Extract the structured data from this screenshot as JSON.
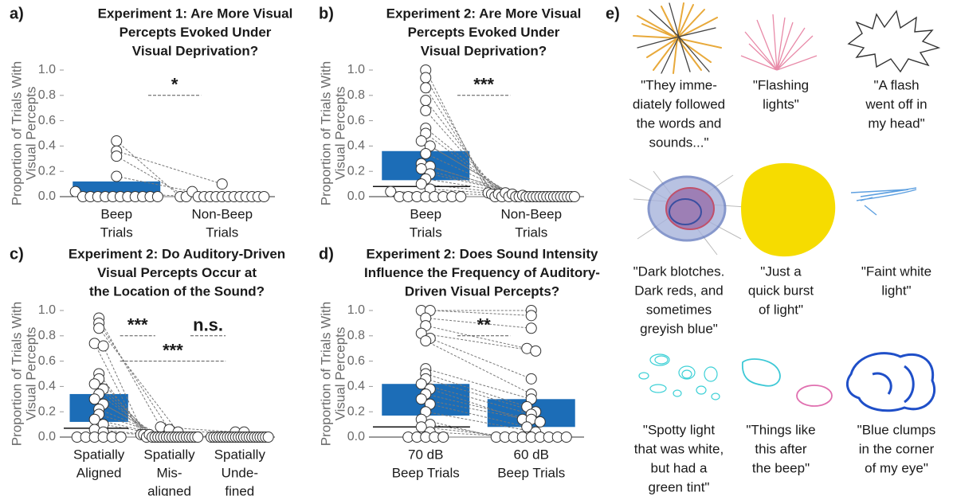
{
  "chart_data": [
    {
      "type": "paired-dots",
      "panel": "a)",
      "title": [
        "Experiment 1: Are More Visual",
        "Percepts Evoked Under",
        "Visual Deprivation?"
      ],
      "ylabel": [
        "Proportion of Trials With",
        "Visual Percepts"
      ],
      "categories": [
        [
          "Beep",
          "Trials"
        ],
        [
          "Non-Beep",
          "Trials"
        ]
      ],
      "ylim": [
        0,
        1
      ],
      "yticks": [
        {
          "value": 0,
          "label": "0.0"
        },
        0.2,
        0.4,
        0.6,
        0.8,
        {
          "value": 1,
          "label": "1.0"
        }
      ],
      "color": "#1c6db7",
      "box": [
        [
          0,
          0.12
        ],
        null
      ],
      "median": [
        null,
        null
      ],
      "points": [
        [
          0.44,
          0.36,
          0.32,
          0.16,
          0.04,
          0,
          0,
          0,
          0,
          0,
          0,
          0,
          0,
          0,
          0,
          0
        ],
        [
          0,
          0.1,
          0,
          0.04,
          0,
          0,
          0,
          0,
          0,
          0,
          0,
          0,
          0,
          0,
          0,
          0
        ]
      ],
      "annotations": [
        {
          "label": "*",
          "y": 0.8,
          "pair": [
            0,
            1
          ]
        }
      ]
    },
    {
      "type": "paired-dots",
      "panel": "b)",
      "title": [
        "Experiment 2: Are More Visual",
        "Percepts Evoked Under",
        "Visual Deprivation?"
      ],
      "ylabel": [
        "Proportion of Trials With",
        "Visual Percepts"
      ],
      "categories": [
        [
          "Beep",
          "Trials"
        ],
        [
          "Non-Beep",
          "Trials"
        ]
      ],
      "ylim": [
        0,
        1
      ],
      "yticks": [
        {
          "value": 0,
          "label": "0.0"
        },
        0.2,
        0.4,
        0.6,
        0.8,
        {
          "value": 1,
          "label": "1.0"
        }
      ],
      "color": "#1c6db7",
      "box": [
        [
          0.13,
          0.36
        ],
        null
      ],
      "median": [
        0.08,
        null
      ],
      "points": [
        [
          1,
          0.94,
          0.86,
          0.76,
          0.68,
          0.54,
          0.5,
          0.44,
          0.4,
          0.34,
          0.26,
          0.24,
          0.22,
          0.18,
          0.14,
          0.1,
          0.06,
          0.04,
          0,
          0,
          0,
          0,
          0,
          0,
          0,
          0
        ],
        [
          0.03,
          0.02,
          0,
          0.02,
          0,
          0.03,
          0,
          0.02,
          0,
          0,
          0.01,
          0,
          0,
          0,
          0,
          0,
          0,
          0,
          0,
          0,
          0,
          0,
          0,
          0,
          0,
          0
        ]
      ],
      "annotations": [
        {
          "label": "***",
          "y": 0.8,
          "pair": [
            0,
            1
          ]
        }
      ]
    },
    {
      "type": "paired-dots",
      "panel": "c)",
      "title": [
        "Experiment 2: Do Auditory-Driven",
        "Visual Percepts Occur at",
        "the Location of the Sound?"
      ],
      "ylabel": [
        "Proportion of Trials With",
        "Visual Percepts"
      ],
      "categories": [
        [
          "Spatially",
          "Aligned"
        ],
        [
          "Spatially",
          "Mis-",
          "aligned"
        ],
        [
          "Spatially",
          "Unde-",
          "fined"
        ]
      ],
      "ylim": [
        0,
        1
      ],
      "yticks": [
        {
          "value": 0,
          "label": "0.0"
        },
        0.2,
        0.4,
        0.6,
        0.8,
        {
          "value": 1,
          "label": "1.0"
        }
      ],
      "color": "#1c6db7",
      "box": [
        [
          0.12,
          0.34
        ],
        null,
        null
      ],
      "median": [
        0.07,
        null,
        null
      ],
      "points": [
        [
          0.94,
          0.9,
          0.86,
          0.74,
          0.72,
          0.5,
          0.46,
          0.42,
          0.38,
          0.34,
          0.3,
          0.26,
          0.22,
          0.18,
          0.14,
          0.1,
          0.06,
          0.04,
          0,
          0,
          0,
          0,
          0,
          0
        ],
        [
          0.08,
          0.06,
          0.04,
          0.02,
          0.02,
          0,
          0.02,
          0,
          0,
          0,
          0,
          0,
          0,
          0,
          0,
          0,
          0,
          0,
          0,
          0,
          0,
          0,
          0,
          0
        ],
        [
          0.04,
          0,
          0.04,
          0,
          0,
          0,
          0,
          0,
          0,
          0,
          0,
          0,
          0,
          0,
          0,
          0,
          0,
          0,
          0,
          0,
          0,
          0,
          0,
          0
        ]
      ],
      "annotations": [
        {
          "label": "***",
          "y": 0.8,
          "pair": [
            0,
            1
          ]
        },
        {
          "label": "n.s.",
          "y": 0.8,
          "pair": [
            1,
            2
          ]
        },
        {
          "label": "***",
          "y": 0.6,
          "pair": [
            0,
            2
          ]
        }
      ]
    },
    {
      "type": "paired-dots",
      "panel": "d)",
      "title": [
        "Experiment 2: Does Sound Intensity",
        "Influence the Frequency of Auditory-",
        "Driven Visual Percepts?"
      ],
      "ylabel": [
        "Proportion of Trials With",
        "Visual Percepts"
      ],
      "categories": [
        [
          "70 dB",
          "Beep Trials"
        ],
        [
          "60 dB",
          "Beep Trials"
        ]
      ],
      "ylim": [
        0,
        1
      ],
      "yticks": [
        {
          "value": 0,
          "label": "0.0"
        },
        0.2,
        0.4,
        0.6,
        0.8,
        {
          "value": 1,
          "label": "1.0"
        }
      ],
      "color": "#1c6db7",
      "box": [
        [
          0.17,
          0.42
        ],
        [
          0.08,
          0.3
        ]
      ],
      "median": [
        0.08,
        null
      ],
      "points": [
        [
          1,
          1,
          0.94,
          0.88,
          0.82,
          0.78,
          0.76,
          0.54,
          0.5,
          0.46,
          0.42,
          0.38,
          0.34,
          0.3,
          0.26,
          0.2,
          0.14,
          0.1,
          0.08,
          0.04,
          0,
          0,
          0,
          0,
          0
        ],
        [
          1,
          0.96,
          0.86,
          0.7,
          0.68,
          0.46,
          0.34,
          0.3,
          0.24,
          0.2,
          0.18,
          0.14,
          0.14,
          0.12,
          0.08,
          0.04,
          0,
          0,
          0,
          0,
          0,
          0,
          0,
          0,
          0
        ]
      ],
      "annotations": [
        {
          "label": "**",
          "y": 0.8,
          "pair": [
            0,
            1
          ]
        }
      ]
    }
  ],
  "panel_e": {
    "label": "e)",
    "quotes": [
      [
        "\"They imme-",
        "diately followed",
        "the words and",
        "sounds...\""
      ],
      [
        "\"Flashing",
        "lights\""
      ],
      [
        "\"A flash",
        "went off in",
        "my head\""
      ],
      [
        "\"Dark blotches.",
        "Dark reds, and",
        "sometimes",
        "greyish blue\""
      ],
      [
        "\"Just a",
        "quick burst",
        "of light\""
      ],
      [
        "\"Faint white",
        "light\""
      ],
      [
        "\"Spotty light",
        "that was white,",
        "but had a",
        "green tint\""
      ],
      [
        "\"Things like",
        "this after",
        "the beep\""
      ],
      [
        "\"Blue clumps",
        "in the corner",
        "of my eye\""
      ]
    ]
  }
}
